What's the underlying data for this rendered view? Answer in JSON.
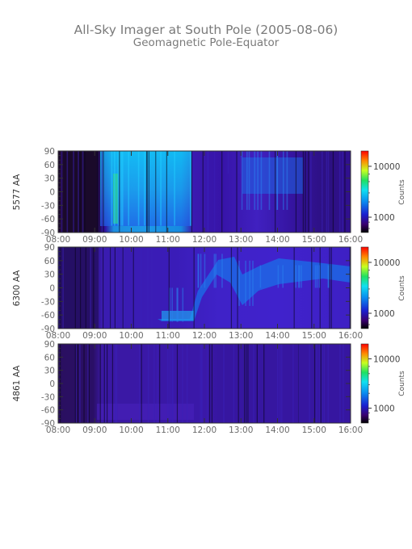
{
  "title": "All-Sky Imager at South Pole (2005-08-06)",
  "subtitle": "Geomagnetic Pole-Equator",
  "chart_data": [
    {
      "type": "heatmap",
      "ylabel": "5577 AA",
      "x_ticks": [
        "08:00",
        "09:00",
        "10:00",
        "11:00",
        "12:00",
        "13:00",
        "14:00",
        "15:00",
        "16:00"
      ],
      "y_ticks": [
        "90",
        "60",
        "30",
        "0",
        "-30",
        "-60",
        "-90"
      ],
      "xlim": [
        "08:00",
        "16:00"
      ],
      "ylim": [
        -90,
        90
      ],
      "colorbar": {
        "label": "Counts",
        "ticks": [
          "10000",
          "1000"
        ],
        "range": [
          500,
          20000
        ]
      },
      "segments": [
        {
          "from": "08:00",
          "to": "08:10",
          "level": 0.2
        },
        {
          "from": "08:10",
          "to": "09:00",
          "level": 0.02
        },
        {
          "from": "09:00",
          "to": "09:20",
          "level": 0.1
        },
        {
          "from": "09:20",
          "to": "11:45",
          "level": 0.55,
          "lat_range": [
            -75,
            90
          ]
        },
        {
          "from": "11:45",
          "to": "12:30",
          "level": 0.18
        },
        {
          "from": "12:30",
          "to": "13:00",
          "level": 0.25,
          "lat_range": [
            40,
            90
          ]
        },
        {
          "from": "13:00",
          "to": "14:40",
          "level": 0.35,
          "lat_range": [
            -40,
            90
          ]
        },
        {
          "from": "14:40",
          "to": "15:40",
          "level": 0.22
        },
        {
          "from": "15:40",
          "to": "16:00",
          "level": 0.12
        }
      ]
    },
    {
      "type": "heatmap",
      "ylabel": "6300 AA",
      "x_ticks": [
        "08:00",
        "09:00",
        "10:00",
        "11:00",
        "12:00",
        "13:00",
        "14:00",
        "15:00",
        "16:00"
      ],
      "y_ticks": [
        "90",
        "60",
        "30",
        "0",
        "-30",
        "-60",
        "-90"
      ],
      "xlim": [
        "08:00",
        "16:00"
      ],
      "ylim": [
        -90,
        90
      ],
      "colorbar": {
        "label": "Counts",
        "ticks": [
          "10000",
          "1000"
        ],
        "range": [
          500,
          20000
        ]
      },
      "segments": [
        {
          "from": "08:00",
          "to": "09:00",
          "level": 0.08
        },
        {
          "from": "09:00",
          "to": "09:30",
          "level": 0.15
        },
        {
          "from": "09:30",
          "to": "10:50",
          "level": 0.2
        },
        {
          "from": "10:50",
          "to": "11:45",
          "level": 0.35,
          "lat_range": [
            -75,
            0
          ]
        },
        {
          "from": "11:45",
          "to": "12:40",
          "level": 0.3,
          "lat_range": [
            0,
            75
          ]
        },
        {
          "from": "12:40",
          "to": "13:30",
          "level": 0.3,
          "lat_range": [
            -40,
            60
          ]
        },
        {
          "from": "13:30",
          "to": "16:00",
          "level": 0.32,
          "lat_range": [
            0,
            50
          ]
        }
      ]
    },
    {
      "type": "heatmap",
      "ylabel": "4861 AA",
      "x_ticks": [
        "08:00",
        "09:00",
        "10:00",
        "11:00",
        "12:00",
        "13:00",
        "14:00",
        "15:00",
        "16:00"
      ],
      "y_ticks": [
        "90",
        "60",
        "30",
        "0",
        "-30",
        "-60",
        "-90"
      ],
      "xlim": [
        "08:00",
        "16:00"
      ],
      "ylim": [
        -90,
        90
      ],
      "colorbar": {
        "label": "Counts",
        "ticks": [
          "10000",
          "1000"
        ],
        "range": [
          500,
          20000
        ]
      },
      "segments": [
        {
          "from": "08:00",
          "to": "09:00",
          "level": 0.06
        },
        {
          "from": "09:00",
          "to": "12:00",
          "level": 0.15
        },
        {
          "from": "12:00",
          "to": "16:00",
          "level": 0.14
        }
      ]
    }
  ]
}
